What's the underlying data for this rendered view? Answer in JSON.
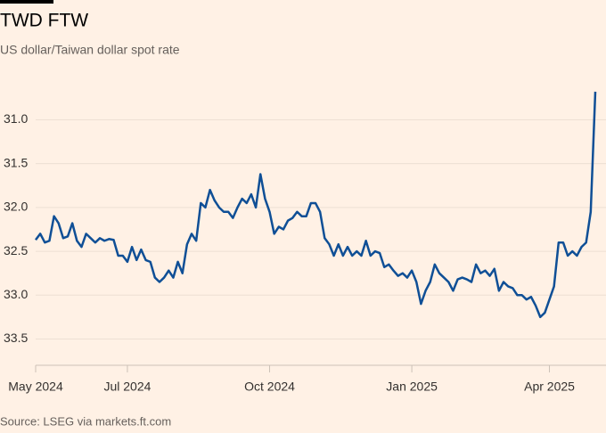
{
  "chart_data": {
    "type": "line",
    "title": "TWD FTW",
    "subtitle": "US dollar/Taiwan dollar spot rate",
    "source": "Source: LSEG via markets.ft.com",
    "categories": [
      "May 2024",
      null,
      null,
      null,
      null,
      null,
      null,
      null,
      null,
      null,
      null,
      null,
      null,
      null,
      null,
      null,
      null,
      null,
      null,
      null,
      "Jul 2024",
      null,
      null,
      null,
      null,
      null,
      null,
      null,
      null,
      null,
      null,
      null,
      null,
      null,
      null,
      null,
      null,
      null,
      null,
      null,
      null,
      null,
      null,
      null,
      null,
      null,
      null,
      null,
      null,
      null,
      null,
      "Oct 2024",
      null,
      null,
      null,
      null,
      null,
      null,
      null,
      null,
      null,
      null,
      null,
      null,
      null,
      null,
      null,
      null,
      null,
      null,
      null,
      null,
      null,
      null,
      null,
      null,
      null,
      null,
      null,
      null,
      null,
      null,
      "Jan 2025",
      null,
      null,
      null,
      null,
      null,
      null,
      null,
      null,
      null,
      null,
      null,
      null,
      null,
      null,
      null,
      null,
      null,
      null,
      null,
      null,
      null,
      null,
      null,
      null,
      null,
      null,
      null,
      null,
      null,
      "Apr 2025",
      null,
      null,
      null,
      null,
      null,
      null,
      null,
      null,
      null,
      null
    ],
    "series": [
      {
        "name": "USD/TWD",
        "color": "#0f4f96",
        "values": [
          32.37,
          32.3,
          32.4,
          32.38,
          32.1,
          32.18,
          32.35,
          32.33,
          32.18,
          32.38,
          32.45,
          32.3,
          32.35,
          32.4,
          32.35,
          32.38,
          32.36,
          32.37,
          32.55,
          32.55,
          32.62,
          32.45,
          32.6,
          32.48,
          32.6,
          32.62,
          32.8,
          32.85,
          32.8,
          32.72,
          32.8,
          32.62,
          32.75,
          32.42,
          32.3,
          32.38,
          31.95,
          32.0,
          31.8,
          31.92,
          32.0,
          32.05,
          32.05,
          32.12,
          32.0,
          31.9,
          31.95,
          31.85,
          32.0,
          31.62,
          31.9,
          32.05,
          32.3,
          32.22,
          32.25,
          32.15,
          32.12,
          32.05,
          32.1,
          32.1,
          31.95,
          31.95,
          32.05,
          32.35,
          32.42,
          32.55,
          32.42,
          32.55,
          32.45,
          32.55,
          32.5,
          32.55,
          32.38,
          32.55,
          32.5,
          32.52,
          32.68,
          32.65,
          32.72,
          32.78,
          32.75,
          32.8,
          32.72,
          32.85,
          33.1,
          32.95,
          32.85,
          32.65,
          32.75,
          32.8,
          32.85,
          32.95,
          32.82,
          32.8,
          32.82,
          32.85,
          32.65,
          32.75,
          32.72,
          32.78,
          32.7,
          32.95,
          32.85,
          32.9,
          32.92,
          33.0,
          33.0,
          33.05,
          33.02,
          33.12,
          33.25,
          33.2,
          33.05,
          32.9,
          32.4,
          32.4,
          32.55,
          32.5,
          32.55,
          32.45,
          32.4,
          32.05,
          30.68
        ]
      }
    ],
    "ylim": [
      30.65,
      33.8
    ],
    "inverted": true,
    "yticks": [
      {
        "value": 31,
        "label": "31.0"
      },
      31.5,
      {
        "value": 32,
        "label": "32.0"
      },
      32.5,
      {
        "value": 33,
        "label": "33.0"
      },
      33.5
    ],
    "grid": true
  }
}
